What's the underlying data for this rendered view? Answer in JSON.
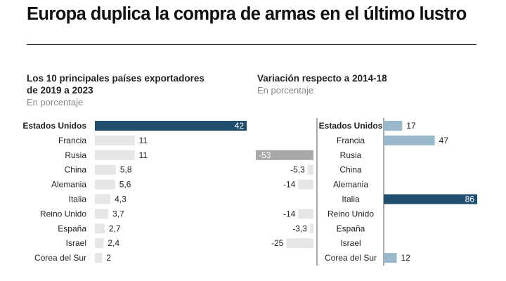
{
  "title": "Europa duplica la compra de armas en el último lustro",
  "left_panel": {
    "title_line1": "Los 10 principales países exportadores",
    "title_line2": "de 2019 a 2023",
    "subtitle": "En porcentaje"
  },
  "right_panel": {
    "title": "Variación respecto a 2014-18",
    "subtitle": "En porcentaje"
  },
  "colors": {
    "highlight": "#1f4e6e",
    "left_bar": "#e6e6e6",
    "positive_bar": "#9ab8cc",
    "negative_bar": "#e6e6e6",
    "negative_highlight": "#a8a8a8"
  },
  "chart_data": [
    {
      "type": "bar",
      "orientation": "horizontal",
      "categories": [
        "Estados Unidos",
        "Francia",
        "Rusia",
        "China",
        "Alemania",
        "Italia",
        "Reino Unido",
        "España",
        "Israel",
        "Corea del Sur"
      ],
      "values": [
        42,
        11,
        11,
        5.8,
        5.6,
        4.3,
        3.7,
        2.7,
        2.4,
        2
      ],
      "value_labels": [
        "42",
        "11",
        "11",
        "5,8",
        "5,6",
        "4,3",
        "3,7",
        "2,7",
        "2,4",
        "2"
      ],
      "title": "Los 10 principales países exportadores de 2019 a 2023",
      "subtitle": "En porcentaje",
      "xlim": [
        0,
        42
      ],
      "highlight": [
        "Estados Unidos"
      ]
    },
    {
      "type": "bar",
      "orientation": "horizontal",
      "diverging": true,
      "categories": [
        "Estados Unidos",
        "Francia",
        "Rusia",
        "China",
        "Alemania",
        "Italia",
        "Reino Unido",
        "España",
        "Israel",
        "Corea del Sur"
      ],
      "values": [
        17,
        47,
        -53,
        -5.3,
        -14,
        86,
        -14,
        -3.3,
        -25,
        12
      ],
      "value_labels": [
        "17",
        "47",
        "-53",
        "-5,3",
        "-14",
        "86",
        "-14",
        "-3,3",
        "-25",
        "12"
      ],
      "title": "Variación respecto a 2014-18",
      "subtitle": "En porcentaje",
      "xlim": [
        -53,
        86
      ],
      "highlight": [
        "Estados Unidos",
        "Italia",
        "Rusia"
      ]
    }
  ]
}
